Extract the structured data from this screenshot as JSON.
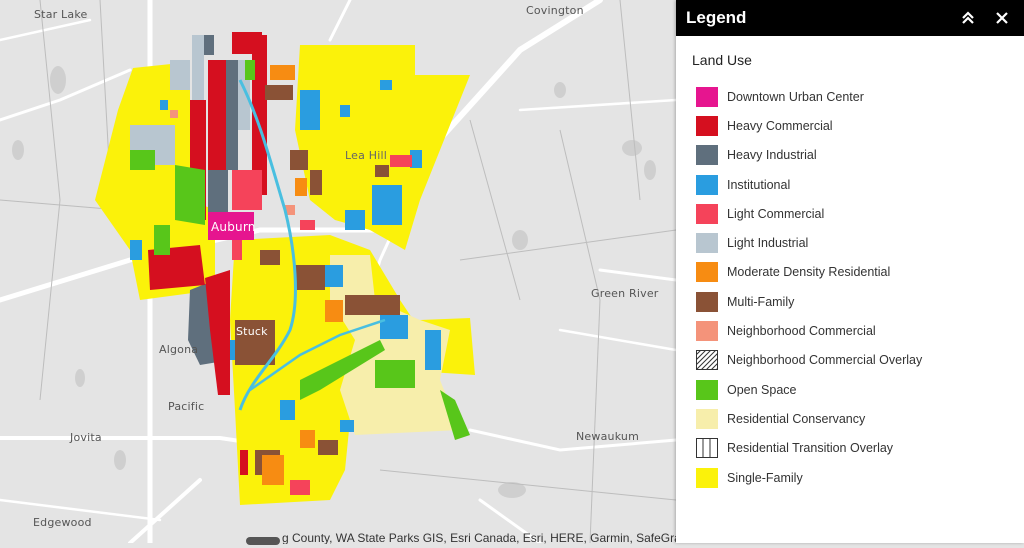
{
  "map": {
    "place_labels": [
      "Star Lake",
      "Covington",
      "Lea Hill",
      "Auburn",
      "Green River",
      "Algona",
      "Stuck",
      "Pacific",
      "Jovita",
      "Newaukum",
      "Edgewood"
    ],
    "attribution": "g County, WA State Parks GIS, Esri Canada, Esri, HERE, Garmin, SafeGraph, METI/NASA, USGS"
  },
  "legend": {
    "title": "Legend",
    "layer_title": "Land Use",
    "items": [
      {
        "label": "Downtown Urban Center",
        "color": "#e6158f"
      },
      {
        "label": "Heavy Commercial",
        "color": "#d50f1f"
      },
      {
        "label": "Heavy Industrial",
        "color": "#5f6f7d"
      },
      {
        "label": "Institutional",
        "color": "#2a9de0"
      },
      {
        "label": "Light Commercial",
        "color": "#f5435a"
      },
      {
        "label": "Light Industrial",
        "color": "#b8c6d0"
      },
      {
        "label": "Moderate Density Residential",
        "color": "#f78c12"
      },
      {
        "label": "Multi-Family",
        "color": "#8a5236"
      },
      {
        "label": "Neighborhood Commercial",
        "color": "#f4937a"
      },
      {
        "label": "Neighborhood Commercial Overlay",
        "color": "hatch-diagonal"
      },
      {
        "label": "Open Space",
        "color": "#58c61a"
      },
      {
        "label": "Residential Conservancy",
        "color": "#f7eeab"
      },
      {
        "label": "Residential Transition Overlay",
        "color": "hatch-vertical"
      },
      {
        "label": "Single-Family",
        "color": "#fbf20a"
      }
    ],
    "collapse_icon": "double-chevron-up-icon",
    "close_icon": "close-icon"
  }
}
